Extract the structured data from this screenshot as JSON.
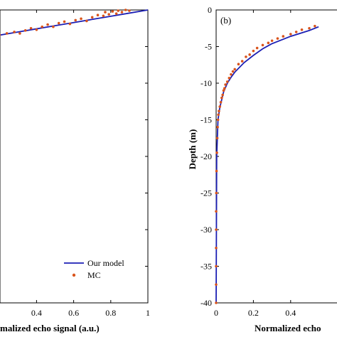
{
  "colors": {
    "model_line": "#1c1fb4",
    "mc_points": "#d9541c",
    "axes": "#000000",
    "background": "#ffffff"
  },
  "chart_data": [
    {
      "type": "line",
      "panel": "left",
      "xlabel": "Normalized echo signal (a.u.)",
      "xlabel_visible": "malized echo signal (a.u.)",
      "ylabel": "",
      "xlim": [
        0,
        1
      ],
      "ylim": [
        -40,
        0
      ],
      "x_tick_labels": [
        "0.4",
        "0.6",
        "0.8",
        "1"
      ],
      "y_tick_labels": [],
      "grid": false,
      "legend": {
        "placement": "bottom-right",
        "entries": [
          "Our model",
          "MC"
        ]
      },
      "series": [
        {
          "name": "Our model",
          "style": "line",
          "x": [
            0.0,
            0.1,
            0.2,
            0.3,
            0.4,
            0.5,
            0.6,
            0.7,
            0.8,
            0.9,
            1.0
          ],
          "y": [
            -4.3,
            -3.87,
            -3.44,
            -3.01,
            -2.58,
            -2.15,
            -1.72,
            -1.29,
            -0.86,
            -0.43,
            0.0
          ]
        },
        {
          "name": "MC",
          "style": "points",
          "x": [
            0.06,
            0.1,
            0.15,
            0.2,
            0.24,
            0.28,
            0.31,
            0.34,
            0.37,
            0.4,
            0.43,
            0.46,
            0.49,
            0.52,
            0.55,
            0.58,
            0.61,
            0.64,
            0.67,
            0.7,
            0.73,
            0.76,
            0.77,
            0.79,
            0.81,
            0.83,
            0.84,
            0.86,
            0.88,
            0.9
          ],
          "y": [
            -3.9,
            -3.5,
            -3.7,
            -3.4,
            -3.2,
            -3.0,
            -3.2,
            -2.8,
            -2.5,
            -2.7,
            -2.3,
            -2.0,
            -2.3,
            -1.8,
            -1.6,
            -1.9,
            -1.4,
            -1.2,
            -1.5,
            -1.0,
            -0.7,
            -0.8,
            -0.3,
            -0.6,
            -0.2,
            -0.5,
            -0.1,
            -0.3,
            0.0,
            -0.1
          ]
        }
      ]
    },
    {
      "type": "line",
      "panel": "right",
      "panel_label": "(b)",
      "xlabel": "Normalized echo signal (a.u.)",
      "xlabel_visible": "Normalized echo",
      "ylabel": "Depth (m)",
      "xlim": [
        0,
        1
      ],
      "ylim": [
        -40,
        0
      ],
      "x_tick_labels": [
        "0",
        "0.2",
        "0.4"
      ],
      "y_tick_labels": [
        "0",
        "-5",
        "-10",
        "-15",
        "-20",
        "-25",
        "-30",
        "-35",
        "-40"
      ],
      "grid": false,
      "series": [
        {
          "name": "Our model",
          "style": "line",
          "x": [
            0.0,
            0.003,
            0.01,
            0.02,
            0.04,
            0.06,
            0.08,
            0.1,
            0.15,
            0.2,
            0.25,
            0.3,
            0.4,
            0.5,
            0.55
          ],
          "y": [
            -40.0,
            -20.0,
            -15.0,
            -13.3,
            -11.2,
            -10.0,
            -9.2,
            -8.5,
            -7.2,
            -6.2,
            -5.3,
            -4.6,
            -3.6,
            -2.8,
            -2.3
          ]
        },
        {
          "name": "MC",
          "style": "points",
          "x": [
            0.0,
            0.0,
            0.0,
            0.0,
            0.0,
            0.0,
            0.001,
            0.002,
            0.004,
            0.006,
            0.008,
            0.01,
            0.012,
            0.015,
            0.02,
            0.025,
            0.03,
            0.035,
            0.04,
            0.045,
            0.05,
            0.06,
            0.07,
            0.08,
            0.09,
            0.1,
            0.12,
            0.14,
            0.16,
            0.18,
            0.2,
            0.22,
            0.25,
            0.28,
            0.3,
            0.33,
            0.36,
            0.4,
            0.43,
            0.46,
            0.5,
            0.53
          ],
          "y": [
            -40.0,
            -37.5,
            -35.0,
            -32.5,
            -30.0,
            -27.5,
            -25.0,
            -22.0,
            -19.5,
            -17.5,
            -16.0,
            -15.0,
            -14.3,
            -13.8,
            -13.2,
            -12.6,
            -12.0,
            -11.6,
            -11.0,
            -10.7,
            -10.2,
            -9.8,
            -9.3,
            -8.8,
            -8.4,
            -8.1,
            -7.4,
            -7.0,
            -6.4,
            -6.1,
            -5.6,
            -5.2,
            -4.8,
            -4.5,
            -4.2,
            -3.9,
            -3.6,
            -3.3,
            -3.0,
            -2.7,
            -2.5,
            -2.2
          ]
        }
      ]
    }
  ]
}
